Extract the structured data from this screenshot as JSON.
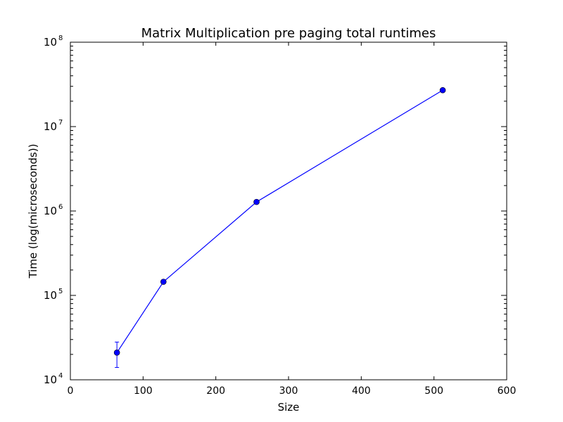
{
  "chart_data": {
    "type": "line",
    "title": "Matrix Multiplication pre paging total runtimes",
    "xlabel": "Size",
    "ylabel": "Time (log(microseconds))",
    "xlim": [
      0,
      600
    ],
    "ylim": [
      10000,
      100000000
    ],
    "yscale": "log",
    "grid": false,
    "x_ticks": [
      "0",
      "100",
      "200",
      "300",
      "400",
      "500",
      "600"
    ],
    "y_ticks": [
      {
        "base": "10",
        "exp": "4"
      },
      {
        "base": "10",
        "exp": "5"
      },
      {
        "base": "10",
        "exp": "6"
      },
      {
        "base": "10",
        "exp": "7"
      },
      {
        "base": "10",
        "exp": "8"
      }
    ],
    "series": [
      {
        "color": "#0000ff",
        "marker": "circle",
        "x": [
          64,
          128,
          256,
          512
        ],
        "y": [
          21000,
          145000,
          1280000,
          27000000
        ],
        "yerr_low": [
          14000,
          145000,
          1280000,
          27000000
        ],
        "yerr_high": [
          28000,
          145000,
          1280000,
          27000000
        ]
      }
    ]
  }
}
